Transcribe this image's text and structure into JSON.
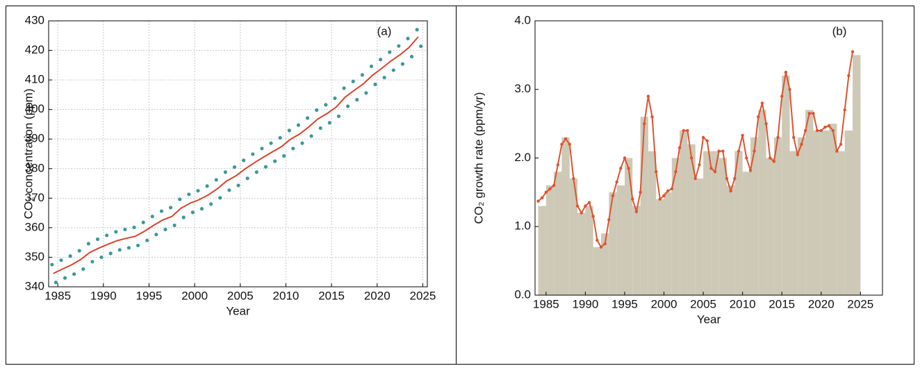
{
  "chart_data": [
    {
      "type": "line",
      "annotation": "(a)",
      "x_label": "Year",
      "y_label": "CO₂ concentration (ppm)",
      "xlim": [
        1984,
        2025.5
      ],
      "xticks": [
        1985,
        1990,
        1995,
        2000,
        2005,
        2010,
        2015,
        2020,
        2025
      ],
      "ylim": [
        340,
        430
      ],
      "yticks": [
        340,
        350,
        360,
        370,
        380,
        390,
        400,
        410,
        420,
        430
      ],
      "grid": true,
      "series": [
        {
          "type": "scatter",
          "color": "#3a9a96",
          "x": [
            1984.37,
            1984.79,
            1985.37,
            1985.79,
            1986.37,
            1986.79,
            1987.37,
            1987.79,
            1988.37,
            1988.79,
            1989.37,
            1989.79,
            1990.37,
            1990.79,
            1991.37,
            1991.79,
            1992.37,
            1992.79,
            1993.37,
            1993.79,
            1994.37,
            1994.79,
            1995.37,
            1995.79,
            1996.37,
            1996.79,
            1997.37,
            1997.79,
            1998.37,
            1998.79,
            1999.37,
            1999.79,
            2000.37,
            2000.79,
            2001.37,
            2001.79,
            2002.37,
            2002.79,
            2003.37,
            2003.79,
            2004.37,
            2004.79,
            2005.37,
            2005.79,
            2006.37,
            2006.79,
            2007.37,
            2007.79,
            2008.37,
            2008.79,
            2009.37,
            2009.79,
            2010.37,
            2010.79,
            2011.37,
            2011.79,
            2012.37,
            2012.79,
            2013.37,
            2013.79,
            2014.37,
            2014.79,
            2015.37,
            2015.79,
            2016.37,
            2016.79,
            2017.37,
            2017.79,
            2018.37,
            2018.79,
            2019.37,
            2019.79,
            2020.37,
            2020.79,
            2021.37,
            2021.79,
            2022.37,
            2022.79,
            2023.37,
            2023.79,
            2024.37,
            2024.79
          ],
          "values": [
            347.5,
            341.5,
            349.0,
            343.0,
            350.4,
            344.3,
            352.2,
            346.0,
            354.6,
            348.5,
            356.1,
            350.0,
            357.4,
            351.3,
            358.6,
            352.5,
            359.4,
            353.2,
            360.1,
            354.0,
            361.8,
            355.7,
            363.8,
            357.7,
            365.6,
            359.4,
            366.8,
            360.8,
            369.6,
            363.5,
            371.3,
            365.2,
            372.5,
            366.4,
            374.1,
            368.0,
            376.2,
            370.1,
            378.8,
            372.7,
            380.5,
            374.3,
            382.8,
            376.7,
            384.9,
            378.8,
            386.8,
            380.6,
            388.6,
            382.5,
            390.4,
            384.3,
            392.9,
            386.8,
            394.7,
            388.6,
            397.1,
            391.0,
            399.8,
            393.7,
            401.6,
            395.5,
            403.8,
            397.7,
            407.2,
            401.1,
            409.5,
            403.3,
            411.7,
            405.6,
            414.6,
            408.5,
            416.9,
            410.8,
            419.4,
            413.3,
            421.5,
            415.4,
            424.0,
            417.9,
            427.0,
            421.4
          ]
        },
        {
          "type": "line",
          "color": "#d9432a",
          "x": [
            1984.5,
            1985.5,
            1986.5,
            1987.5,
            1988.5,
            1989.5,
            1990.5,
            1991.5,
            1992.5,
            1993.5,
            1994.5,
            1995.5,
            1996.5,
            1997.5,
            1998.5,
            1999.5,
            2000.5,
            2001.5,
            2002.5,
            2003.5,
            2004.5,
            2005.5,
            2006.5,
            2007.5,
            2008.5,
            2009.5,
            2010.5,
            2011.5,
            2012.5,
            2013.5,
            2014.5,
            2015.5,
            2016.5,
            2017.5,
            2018.5,
            2019.5,
            2020.5,
            2021.5,
            2022.5,
            2023.5,
            2024.5
          ],
          "values": [
            344.5,
            346.0,
            347.4,
            349.2,
            351.6,
            353.1,
            354.4,
            355.6,
            356.4,
            357.1,
            358.8,
            360.8,
            362.6,
            363.8,
            366.6,
            368.3,
            369.5,
            371.1,
            373.2,
            375.8,
            377.5,
            379.8,
            381.9,
            383.8,
            385.6,
            387.4,
            389.9,
            391.7,
            394.1,
            396.8,
            398.6,
            400.8,
            404.2,
            406.5,
            408.7,
            411.6,
            413.9,
            416.4,
            418.5,
            421.0,
            424.6
          ]
        }
      ]
    },
    {
      "type": "histogram",
      "annotation": "(b)",
      "x_label": "Year",
      "y_label": "CO₂ growth rate (ppm/yr)",
      "xlim": [
        1983.6,
        2027.8
      ],
      "xticks": [
        1985,
        1990,
        1995,
        2000,
        2005,
        2010,
        2015,
        2020,
        2025
      ],
      "ylim": [
        0,
        4
      ],
      "yticks": [
        {
          "value": 0,
          "label": "0.0"
        },
        {
          "value": 1,
          "label": "1.0"
        },
        {
          "value": 2,
          "label": "2.0"
        },
        {
          "value": 3,
          "label": "3.0"
        },
        {
          "value": 4,
          "label": "4.0"
        }
      ],
      "grid": false,
      "color": "#cdc9b6",
      "bins": [
        1984,
        1985,
        1986,
        1987,
        1988,
        1989,
        1990,
        1991,
        1992,
        1993,
        1994,
        1995,
        1996,
        1997,
        1998,
        1999,
        2000,
        2001,
        2002,
        2003,
        2004,
        2005,
        2006,
        2007,
        2008,
        2009,
        2010,
        2011,
        2012,
        2013,
        2014,
        2015,
        2016,
        2017,
        2018,
        2019,
        2020,
        2021,
        2022,
        2023,
        2024,
        2025
      ],
      "values": [
        1.3,
        1.6,
        1.8,
        2.3,
        1.7,
        1.2,
        1.3,
        0.7,
        0.9,
        1.5,
        1.6,
        2.0,
        1.3,
        2.6,
        2.1,
        1.4,
        1.5,
        2.0,
        2.4,
        2.2,
        1.7,
        2.1,
        2.1,
        2.0,
        1.6,
        2.1,
        1.8,
        2.3,
        2.7,
        2.0,
        2.3,
        3.2,
        2.1,
        2.3,
        2.7,
        2.4,
        2.4,
        2.5,
        2.1,
        2.4,
        3.5
      ],
      "series": [
        {
          "type": "line",
          "color": "#e0522e",
          "x": [
            1984.0,
            1984.5,
            1985.0,
            1985.5,
            1986.0,
            1986.5,
            1987.0,
            1987.5,
            1988.0,
            1988.5,
            1989.0,
            1989.5,
            1990.0,
            1990.5,
            1991.0,
            1991.5,
            1992.0,
            1992.5,
            1993.0,
            1993.5,
            1994.0,
            1994.5,
            1995.0,
            1995.5,
            1996.0,
            1996.5,
            1997.0,
            1997.5,
            1998.0,
            1998.5,
            1999.0,
            1999.5,
            2000.0,
            2000.5,
            2001.0,
            2001.5,
            2002.0,
            2002.5,
            2003.0,
            2003.5,
            2004.0,
            2004.5,
            2005.0,
            2005.5,
            2006.0,
            2006.5,
            2007.0,
            2007.5,
            2008.0,
            2008.5,
            2009.0,
            2009.5,
            2010.0,
            2010.5,
            2011.0,
            2011.5,
            2012.0,
            2012.5,
            2013.0,
            2013.5,
            2014.0,
            2014.5,
            2015.0,
            2015.5,
            2016.0,
            2016.5,
            2017.0,
            2017.5,
            2018.0,
            2018.5,
            2019.0,
            2019.5,
            2020.0,
            2020.5,
            2021.0,
            2021.5,
            2022.0,
            2022.5,
            2023.0,
            2023.5,
            2024.0
          ],
          "values": [
            1.37,
            1.42,
            1.5,
            1.55,
            1.6,
            1.9,
            2.2,
            2.28,
            2.2,
            1.7,
            1.3,
            1.2,
            1.3,
            1.35,
            1.15,
            0.8,
            0.7,
            0.75,
            1.1,
            1.45,
            1.65,
            1.85,
            2.0,
            1.85,
            1.4,
            1.22,
            1.5,
            2.5,
            2.9,
            2.6,
            1.8,
            1.4,
            1.45,
            1.52,
            1.55,
            1.8,
            2.15,
            2.4,
            2.4,
            2.0,
            1.7,
            1.9,
            2.3,
            2.25,
            1.85,
            1.8,
            2.1,
            2.1,
            1.7,
            1.52,
            1.7,
            2.1,
            2.33,
            2.0,
            1.82,
            2.1,
            2.6,
            2.8,
            2.5,
            2.0,
            1.95,
            2.3,
            2.9,
            3.25,
            3.0,
            2.3,
            2.05,
            2.2,
            2.4,
            2.65,
            2.65,
            2.4,
            2.4,
            2.45,
            2.47,
            2.4,
            2.1,
            2.2,
            2.7,
            3.2,
            3.55
          ]
        }
      ]
    }
  ]
}
